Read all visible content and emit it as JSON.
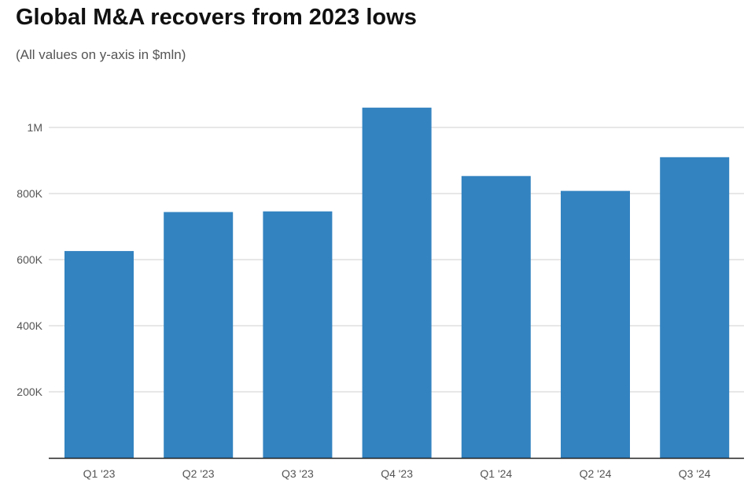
{
  "chart_data": {
    "type": "bar",
    "title": "Global M&A recovers from 2023 lows",
    "subtitle": "(All values on y-axis in $mln)",
    "categories": [
      "Q1 '23",
      "Q2 '23",
      "Q3 '23",
      "Q4 '23",
      "Q1 '24",
      "Q2 '24",
      "Q3 '24"
    ],
    "values": [
      626000,
      744000,
      746000,
      1060000,
      853000,
      808000,
      910000
    ],
    "ylim": [
      0,
      1100000
    ],
    "yticks": [
      200000,
      400000,
      600000,
      800000,
      1000000
    ],
    "ytick_labels": [
      "200K",
      "400K",
      "600K",
      "800K",
      "1M"
    ],
    "grid": true,
    "colors": {
      "bar": "#3383c0",
      "grid": "#cfcfcf",
      "axis": "#222222"
    }
  }
}
